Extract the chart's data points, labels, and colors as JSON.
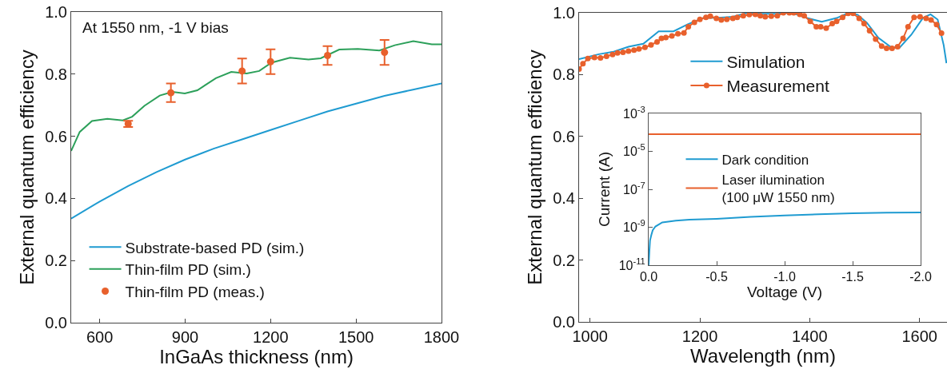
{
  "chart_data": [
    {
      "type": "line",
      "xlabel": "InGaAs thickness (nm)",
      "ylabel": "External quantum efficiency",
      "xlim": [
        500,
        1800
      ],
      "xticks": [
        600,
        900,
        1200,
        1500,
        1800
      ],
      "ylim": [
        0.0,
        1.0
      ],
      "yticks": [
        {
          "value": 0,
          "label": "0.0"
        },
        0.2,
        0.4,
        0.6,
        0.8,
        {
          "value": 1,
          "label": "1.0"
        }
      ],
      "legend": "bottom left",
      "annotations": [
        "At 1550 nm, -1 V bias"
      ],
      "series": [
        {
          "name": "Substrate-based PD (sim.)",
          "color": "#1f9bd1",
          "x": [
            500,
            600,
            700,
            800,
            900,
            1000,
            1100,
            1200,
            1300,
            1400,
            1500,
            1600,
            1700,
            1800
          ],
          "values": [
            0.335,
            0.39,
            0.44,
            0.485,
            0.525,
            0.56,
            0.59,
            0.62,
            0.65,
            0.68,
            0.705,
            0.73,
            0.75,
            0.77
          ]
        },
        {
          "name": "Thin-film PD (sim.)",
          "color": "#2ca05a",
          "x": [
            500,
            530,
            573,
            627,
            681,
            714,
            757,
            811,
            855,
            899,
            943,
            1008,
            1062,
            1116,
            1160,
            1203,
            1268,
            1333,
            1376,
            1441,
            1506,
            1582,
            1636,
            1701,
            1766,
            1800
          ],
          "values": [
            0.553,
            0.614,
            0.649,
            0.656,
            0.651,
            0.663,
            0.698,
            0.731,
            0.743,
            0.738,
            0.748,
            0.787,
            0.807,
            0.802,
            0.81,
            0.837,
            0.853,
            0.847,
            0.851,
            0.879,
            0.881,
            0.876,
            0.893,
            0.906,
            0.896,
            0.896
          ]
        },
        {
          "name": "Thin-film PD (meas.)",
          "type": "scatter",
          "marker": "circle",
          "color": "#e8602c",
          "x": [
            700,
            850,
            1100,
            1200,
            1400,
            1600
          ],
          "values": [
            0.64,
            0.74,
            0.81,
            0.84,
            0.86,
            0.87
          ],
          "errors": [
            0.01,
            0.03,
            0.04,
            0.04,
            0.03,
            0.04
          ]
        }
      ]
    },
    {
      "type": "line",
      "xlabel": "Wavelength (nm)",
      "ylabel": "External quantum efficiency",
      "xlim": [
        980,
        1650
      ],
      "xticks": [
        1000,
        1200,
        1400,
        1600
      ],
      "ylim": [
        0.0,
        1.0
      ],
      "yticks": [
        {
          "value": 0,
          "label": "0.0"
        },
        0.2,
        0.4,
        0.6,
        0.8,
        {
          "value": 1,
          "label": "1.0"
        }
      ],
      "legend": "top",
      "series": [
        {
          "name": "Simulation",
          "color": "#1f9bd1",
          "x": [
            980,
            1016,
            1043,
            1070,
            1097,
            1125,
            1152,
            1178,
            1206,
            1233,
            1260,
            1287,
            1314,
            1341,
            1368,
            1395,
            1422,
            1449,
            1471,
            1487,
            1504,
            1525,
            1547,
            1563,
            1585,
            1606,
            1620,
            1633,
            1644,
            1649
          ],
          "values": [
            0.85,
            0.866,
            0.874,
            0.89,
            0.9,
            0.94,
            0.94,
            0.963,
            0.983,
            0.984,
            0.987,
            1.0,
            0.997,
            0.997,
            1.0,
            0.983,
            0.971,
            0.983,
            1.0,
            0.994,
            0.968,
            0.919,
            0.89,
            0.886,
            0.929,
            0.983,
            0.995,
            0.978,
            0.895,
            0.837
          ]
        },
        {
          "name": "Measurement",
          "marker": "circle",
          "color": "#e8602c",
          "x": [
            980,
            987,
            996,
            1008,
            1019,
            1030,
            1041,
            1050,
            1060,
            1070,
            1080,
            1089,
            1100,
            1111,
            1122,
            1130,
            1138,
            1149,
            1160,
            1171,
            1179,
            1190,
            1200,
            1211,
            1219,
            1230,
            1239,
            1249,
            1260,
            1268,
            1279,
            1290,
            1301,
            1310,
            1319,
            1330,
            1341,
            1352,
            1363,
            1371,
            1382,
            1390,
            1401,
            1412,
            1420,
            1430,
            1441,
            1449,
            1460,
            1470,
            1479,
            1490,
            1499,
            1509,
            1520,
            1531,
            1540,
            1550,
            1560,
            1570,
            1579,
            1590,
            1601,
            1612,
            1621,
            1631,
            1640
          ],
          "values": [
            0.818,
            0.835,
            0.852,
            0.855,
            0.854,
            0.859,
            0.865,
            0.87,
            0.872,
            0.876,
            0.879,
            0.883,
            0.888,
            0.896,
            0.906,
            0.917,
            0.92,
            0.925,
            0.932,
            0.935,
            0.955,
            0.969,
            0.979,
            0.985,
            0.989,
            0.982,
            0.977,
            0.979,
            0.982,
            0.985,
            0.99,
            0.994,
            0.995,
            0.99,
            0.987,
            0.989,
            0.99,
            1.0,
            1.0,
            1.0,
            0.995,
            0.99,
            0.972,
            0.955,
            0.955,
            0.95,
            0.965,
            0.972,
            0.985,
            0.998,
            0.998,
            0.982,
            0.965,
            0.942,
            0.915,
            0.892,
            0.885,
            0.885,
            0.89,
            0.917,
            0.955,
            0.985,
            0.987,
            0.982,
            0.977,
            0.962,
            0.934
          ]
        }
      ]
    },
    {
      "type": "line",
      "xlabel": "Voltage (V)",
      "ylabel": "Current (A)",
      "xlim": [
        0.0,
        -2.0
      ],
      "xticks": [
        {
          "value": 0,
          "label": "0.0"
        },
        -0.5,
        {
          "value": -1,
          "label": "-1.0"
        },
        -1.5,
        {
          "value": -2,
          "label": "-2.0"
        }
      ],
      "ylim": [
        1e-11,
        0.001
      ],
      "yticks": [
        {
          "value": 1e-11,
          "label": "10$^{-11}$"
        },
        {
          "value": 1e-09,
          "label": "10$^{-9}$"
        },
        {
          "value": 1e-07,
          "label": "10$^{-7}$"
        },
        {
          "value": 1e-05,
          "label": "10$^{-5}$"
        },
        {
          "value": 0.001,
          "label": "10$^{-3}$"
        }
      ],
      "log": "y",
      "legend": "top",
      "series": [
        {
          "name": "Dark condition",
          "color": "#1f9bd1",
          "x": [
            0.0,
            -0.005,
            -0.01,
            -0.02,
            -0.03,
            -0.05,
            -0.1,
            -0.2,
            -0.3,
            -0.5,
            -0.75,
            -1.0,
            -1.25,
            -1.5,
            -1.75,
            -2.0
          ],
          "values": [
            1e-11,
            5e-11,
            2e-10,
            4e-10,
            7e-10,
            1.1e-09,
            1.8e-09,
            2.2e-09,
            2.5e-09,
            2.8e-09,
            3.5e-09,
            4.2e-09,
            4.8e-09,
            5.5e-09,
            5.8e-09,
            6e-09
          ]
        },
        {
          "name": "Laser ilumination\n(100 μW 1550 nm)",
          "color": "#e8602c",
          "x": [
            0.0,
            -2.0
          ],
          "values": [
            8e-05,
            8e-05
          ]
        }
      ]
    }
  ]
}
